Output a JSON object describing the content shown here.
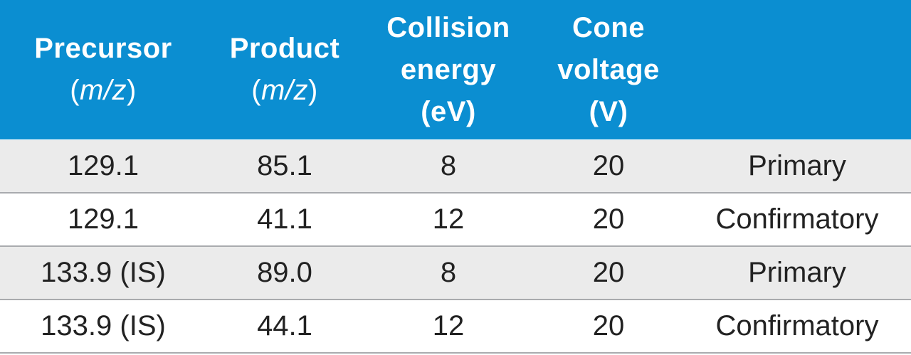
{
  "header": {
    "precursor": {
      "line1": "Precursor",
      "open": "(",
      "unit": "m/z",
      "close": ")"
    },
    "product": {
      "line1": "Product",
      "open": "(",
      "unit": "m/z",
      "close": ")"
    },
    "collision": {
      "line1": "Collision",
      "line2": "energy",
      "line3": "(eV)"
    },
    "cone": {
      "line1": "Cone",
      "line2": "voltage",
      "line3": "(V)"
    },
    "type": ""
  },
  "rows": [
    {
      "precursor": "129.1",
      "product": "85.1",
      "collision": "8",
      "cone": "20",
      "type": "Primary"
    },
    {
      "precursor": "129.1",
      "product": "41.1",
      "collision": "12",
      "cone": "20",
      "type": "Confirmatory"
    },
    {
      "precursor": "133.9 (IS)",
      "product": "89.0",
      "collision": "8",
      "cone": "20",
      "type": "Primary"
    },
    {
      "precursor": "133.9 (IS)",
      "product": "44.1",
      "collision": "12",
      "cone": "20",
      "type": "Confirmatory"
    }
  ],
  "colors": {
    "header_bg": "#0b8ed1",
    "header_text": "#ffffff",
    "row_shade": "#ebebeb",
    "row_white": "#ffffff",
    "divider": "#a9abae",
    "body_text": "#222222"
  }
}
